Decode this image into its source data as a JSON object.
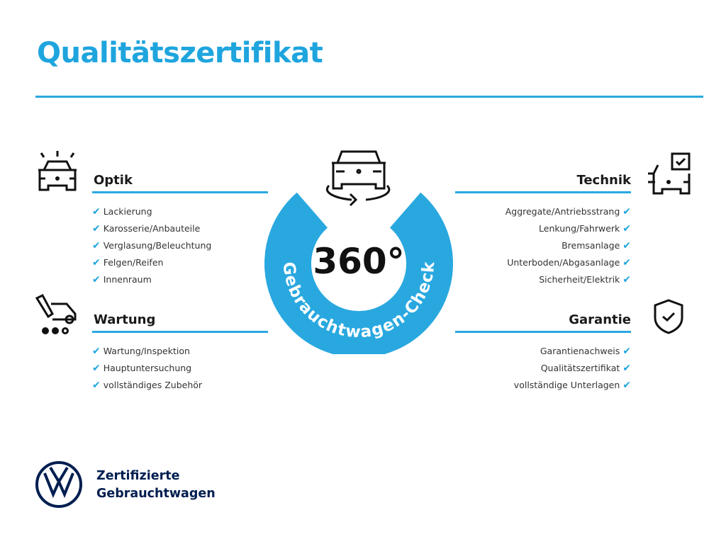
{
  "title": "Qualitätszertifikat",
  "accent_color": "#29a8e0",
  "badge": {
    "number": "360°",
    "arc_text": "Gebrauchtwagen-Check",
    "icon": "car-rotate-icon"
  },
  "sections": {
    "optik": {
      "heading": "Optik",
      "icon": "car-lights-icon",
      "items": [
        "Lackierung",
        "Karosserie/Anbauteile",
        "Verglasung/Beleuchtung",
        "Felgen/Reifen",
        "Innenraum"
      ]
    },
    "wartung": {
      "heading": "Wartung",
      "icon": "service-truck-icon",
      "items": [
        "Wartung/Inspektion",
        "Hauptuntersuchung",
        "vollständiges Zubehör"
      ]
    },
    "technik": {
      "heading": "Technik",
      "icon": "car-checklist-icon",
      "items": [
        "Aggregate/Antriebsstrang",
        "Lenkung/Fahrwerk",
        "Bremsanlage",
        "Unterboden/Abgasanlage",
        "Sicherheit/Elektrik"
      ]
    },
    "garantie": {
      "heading": "Garantie",
      "icon": "shield-check-icon",
      "items": [
        "Garantienachweis",
        "Qualitätszertifikat",
        "vollständige Unterlagen"
      ]
    }
  },
  "check_glyph": "✔",
  "footer": {
    "line1": "Zertifizierte",
    "line2": "Gebrauchtwagen",
    "logo": "VW"
  }
}
